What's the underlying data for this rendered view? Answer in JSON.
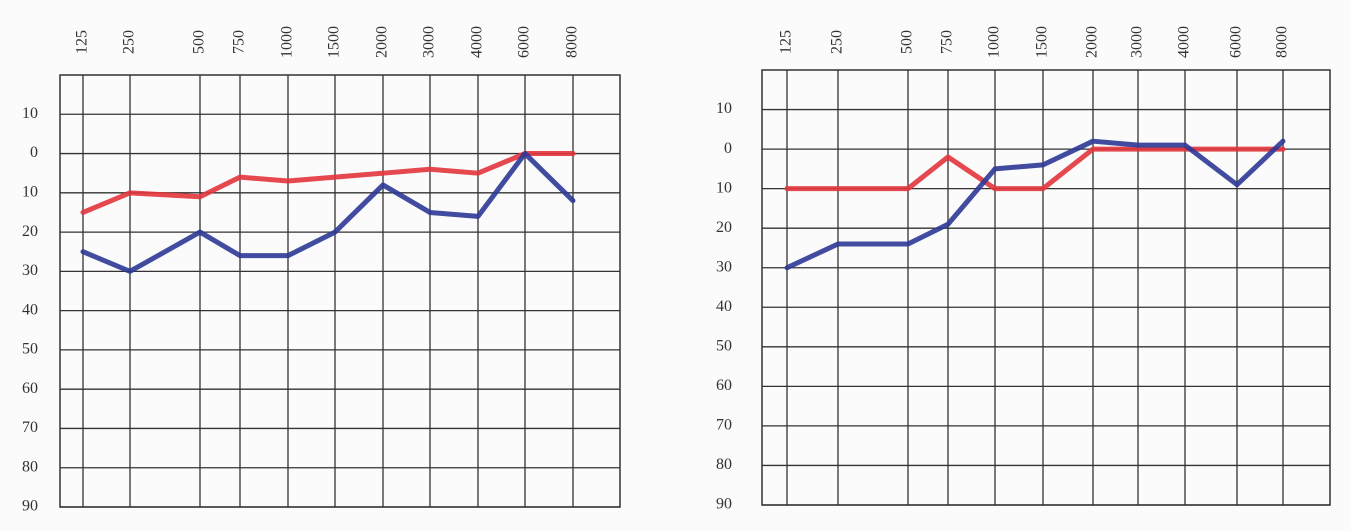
{
  "chart_data": [
    {
      "type": "line",
      "categories": [
        "125",
        "250",
        "500",
        "750",
        "1000",
        "1500",
        "2000",
        "3000",
        "4000",
        "6000",
        "8000"
      ],
      "ylim": [
        -20,
        90
      ],
      "y_inverted": true,
      "yticks": [
        {
          "value": -10,
          "label": "10"
        },
        0,
        10,
        20,
        30,
        40,
        50,
        60,
        70,
        80,
        90
      ],
      "grid": true,
      "series": [
        {
          "color": "#e2353c",
          "values": [
            15,
            10,
            11,
            6,
            7,
            6,
            5,
            4,
            5,
            0,
            0
          ]
        },
        {
          "color": "#2c3896",
          "values": [
            25,
            30,
            20,
            26,
            26,
            20,
            8,
            15,
            16,
            0,
            12
          ]
        }
      ]
    },
    {
      "type": "line",
      "categories": [
        "125",
        "250",
        "500",
        "750",
        "1000",
        "1500",
        "2000",
        "3000",
        "4000",
        "6000",
        "8000"
      ],
      "ylim": [
        -20,
        90
      ],
      "y_inverted": true,
      "yticks": [
        {
          "value": -10,
          "label": "10"
        },
        0,
        10,
        20,
        30,
        40,
        50,
        60,
        70,
        80,
        90
      ],
      "grid": true,
      "series": [
        {
          "color": "#e2353c",
          "values": [
            10,
            10,
            10,
            2,
            10,
            10,
            0,
            0,
            0,
            0,
            0
          ]
        },
        {
          "color": "#2c3896",
          "values": [
            30,
            24,
            24,
            19,
            5,
            4,
            -2,
            -1,
            -1,
            9,
            -2
          ]
        }
      ]
    }
  ]
}
